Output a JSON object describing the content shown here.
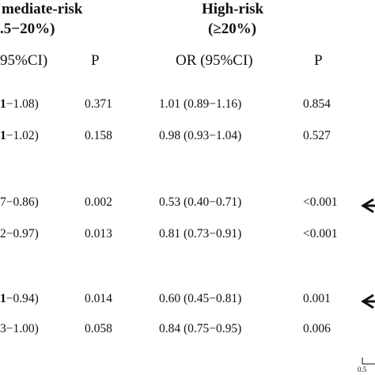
{
  "groups": [
    {
      "title": "mediate-risk",
      "subtitle": ".5−20%)"
    },
    {
      "title": "High-risk",
      "subtitle": "(≥20%)"
    }
  ],
  "columns": {
    "intermediate_or": "95%CI)",
    "intermediate_p": "P",
    "high_or": "OR (95%CI)",
    "high_p": "P"
  },
  "rows": [
    {
      "int_or_bold": "1",
      "int_or_rest": "−1.08)",
      "int_p": "0.371",
      "high_or": "1.01 (0.89−1.16)",
      "high_p": "0.854"
    },
    {
      "int_or_bold": "1",
      "int_or_rest": "−1.02)",
      "int_p": "0.158",
      "high_or": "0.98 (0.93−1.04)",
      "high_p": "0.527"
    },
    {
      "int_or_bold": "",
      "int_or_rest": "7−0.86)",
      "int_p": "0.002",
      "high_or": "0.53 (0.40−0.71)",
      "high_p": "<0.001"
    },
    {
      "int_or_bold": "",
      "int_or_rest": "2−0.97)",
      "int_p": "0.013",
      "high_or": "0.81 (0.73−0.91)",
      "high_p": "<0.001"
    },
    {
      "int_or_bold": "1",
      "int_or_rest": "−0.94)",
      "int_p": "0.014",
      "high_or": "0.60 (0.45−0.81)",
      "high_p": "0.001"
    },
    {
      "int_or_bold": "",
      "int_or_rest": "3−1.00)",
      "int_p": "0.058",
      "high_or": "0.84 (0.75−0.95)",
      "high_p": "0.006"
    }
  ],
  "axis": {
    "tick_label": "0.5"
  }
}
